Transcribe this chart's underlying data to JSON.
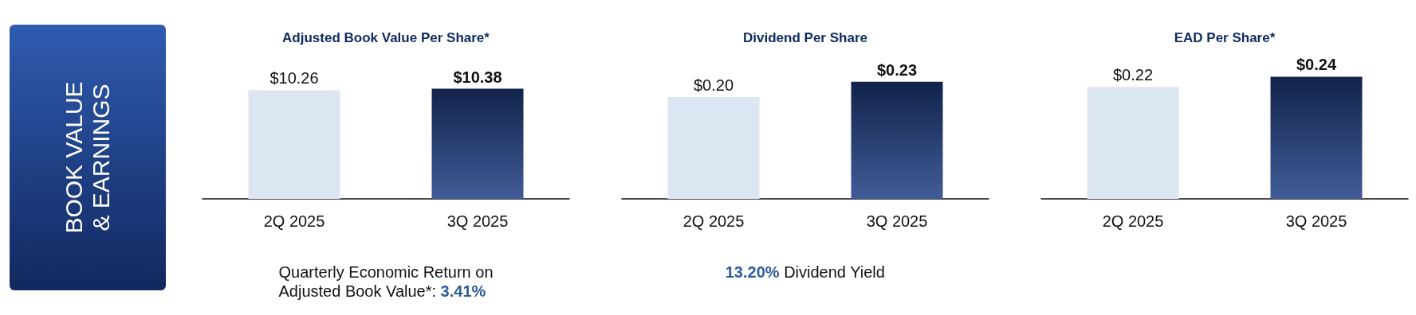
{
  "chart_data": [
    {
      "type": "other",
      "title": "BOOK VALUE & EARNINGS"
    },
    {
      "type": "bar",
      "title": "Adjusted Book Value Per Share*",
      "categories": [
        "2Q 2025",
        "3Q 2025"
      ],
      "values": [
        10.26,
        10.38
      ],
      "colors": [
        "#dce6f2",
        "#1f3f86"
      ],
      "value_labels": [
        "$10.26",
        "$10.38"
      ],
      "annotations": [
        "Quarterly Economic Return on Adjusted Book Value*: 3.41%"
      ]
    },
    {
      "type": "bar",
      "title": "Dividend Per Share",
      "categories": [
        "2Q 2025",
        "3Q 2025"
      ],
      "values": [
        0.2,
        0.23
      ],
      "colors": [
        "#dce6f2",
        "#1f3f86"
      ],
      "value_labels": [
        "$0.20",
        "$0.23"
      ],
      "annotations": [
        "13.20% Dividend Yield"
      ]
    },
    {
      "type": "bar",
      "title": "EAD Per Share*",
      "categories": [
        "2Q 2025",
        "3Q 2025"
      ],
      "values": [
        0.22,
        0.24
      ],
      "colors": [
        "#dce6f2",
        "#1f3f86"
      ],
      "value_labels": [
        "$0.22",
        "$0.24"
      ]
    }
  ]
}
